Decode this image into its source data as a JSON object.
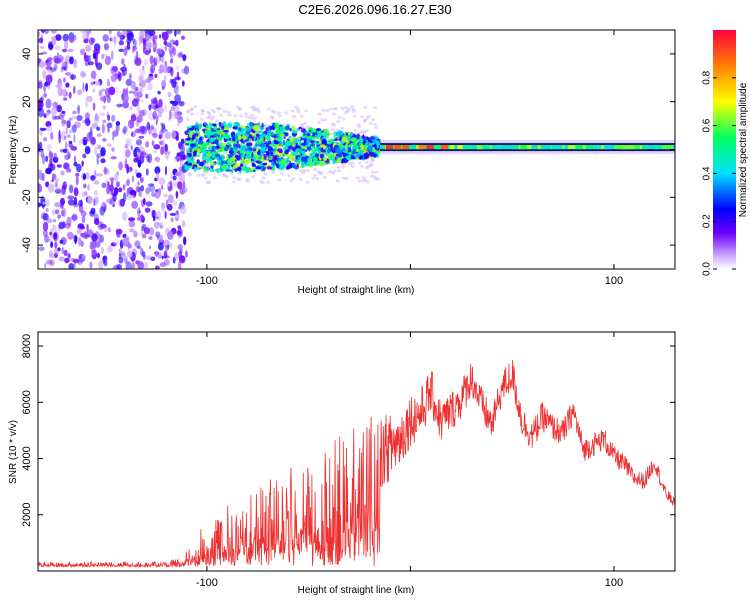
{
  "title": "C2E6.2026.096.16.27.E30",
  "chart_data": [
    {
      "type": "heatmap",
      "title": "",
      "xlabel": "Height of straight line (km)",
      "ylabel": "Frequency (Hz)",
      "xlim": [
        -183,
        130
      ],
      "ylim": [
        -50,
        50
      ],
      "xticks": [
        -100,
        0,
        100
      ],
      "xtick_labels": [
        "-100",
        "",
        "100"
      ],
      "yticks": [
        -40,
        -20,
        0,
        20,
        40
      ],
      "ytick_labels": [
        "-40",
        "-20",
        "0",
        "20",
        "40"
      ],
      "colorbar": {
        "label": "Normalized spectral amplitude",
        "range": [
          0,
          1
        ],
        "ticks": [
          0,
          0.2,
          0.4,
          0.6,
          0.8
        ],
        "tick_labels": [
          "0.0",
          "0.2",
          "0.4",
          "0.6",
          "0.8"
        ],
        "colors": [
          "#ffffff",
          "#c8a0ff",
          "#6a00ff",
          "#0000ff",
          "#00e0ff",
          "#00ff60",
          "#ffff00",
          "#ff8000",
          "#ff0040"
        ]
      },
      "regions": [
        {
          "x_range": [
            -183,
            -110
          ],
          "freq_range": [
            -50,
            50
          ],
          "level": 0.12,
          "description": "broadband noise"
        },
        {
          "x_range": [
            -110,
            -15
          ],
          "freq_range": [
            -8,
            10
          ],
          "level": 0.35,
          "description": "emerging signal band"
        },
        {
          "x_range": [
            -15,
            130
          ],
          "freq_range": [
            -2,
            4
          ],
          "level": 0.5,
          "description": "steady signal line near 0 Hz"
        }
      ]
    },
    {
      "type": "line",
      "title": "",
      "xlabel": "Height of straight line (km)",
      "ylabel": "SNR (10 * v/v)",
      "xlim": [
        -183,
        130
      ],
      "ylim": [
        0,
        8500
      ],
      "xticks": [
        -100,
        0,
        100
      ],
      "xtick_labels": [
        "-100",
        "",
        "100"
      ],
      "yticks": [
        2000,
        4000,
        6000,
        8000
      ],
      "ytick_labels": [
        "2000",
        "4000",
        "6000",
        "8000"
      ],
      "series": [
        {
          "name": "SNR",
          "color": "#ee3030",
          "x": [
            -183,
            -170,
            -160,
            -150,
            -140,
            -130,
            -120,
            -112,
            -105,
            -100,
            -95,
            -90,
            -85,
            -80,
            -75,
            -70,
            -65,
            -60,
            -55,
            -50,
            -45,
            -40,
            -35,
            -30,
            -25,
            -20,
            -15,
            -10,
            -5,
            0,
            5,
            10,
            15,
            20,
            25,
            30,
            35,
            40,
            45,
            50,
            55,
            60,
            65,
            70,
            75,
            80,
            85,
            90,
            95,
            100,
            105,
            110,
            115,
            120,
            125,
            130
          ],
          "values": [
            250,
            260,
            240,
            270,
            250,
            260,
            280,
            350,
            700,
            1000,
            1200,
            1350,
            1500,
            1700,
            1700,
            1900,
            2000,
            2200,
            2100,
            2200,
            2400,
            2600,
            2700,
            2900,
            3000,
            3300,
            4200,
            4400,
            4700,
            5400,
            5600,
            6400,
            5300,
            5700,
            6100,
            6900,
            5900,
            5200,
            6500,
            7000,
            5300,
            4800,
            5500,
            5100,
            4900,
            5700,
            4300,
            4500,
            4700,
            4100,
            3800,
            3300,
            3200,
            3900,
            2800,
            2400
          ],
          "amplitude": [
            80,
            80,
            80,
            80,
            80,
            80,
            80,
            150,
            600,
            800,
            900,
            1000,
            1100,
            1200,
            1300,
            1400,
            1500,
            1600,
            1700,
            1800,
            1900,
            2000,
            2100,
            2200,
            2300,
            2400,
            2200,
            2000,
            1800,
            1600,
            1500,
            1400,
            1300,
            1200,
            1200,
            1100,
            1100,
            1000,
            1000,
            1100,
            1000,
            900,
            900,
            800,
            800,
            800,
            700,
            700,
            700,
            600,
            600,
            500,
            500,
            500,
            400,
            300
          ]
        }
      ]
    }
  ]
}
